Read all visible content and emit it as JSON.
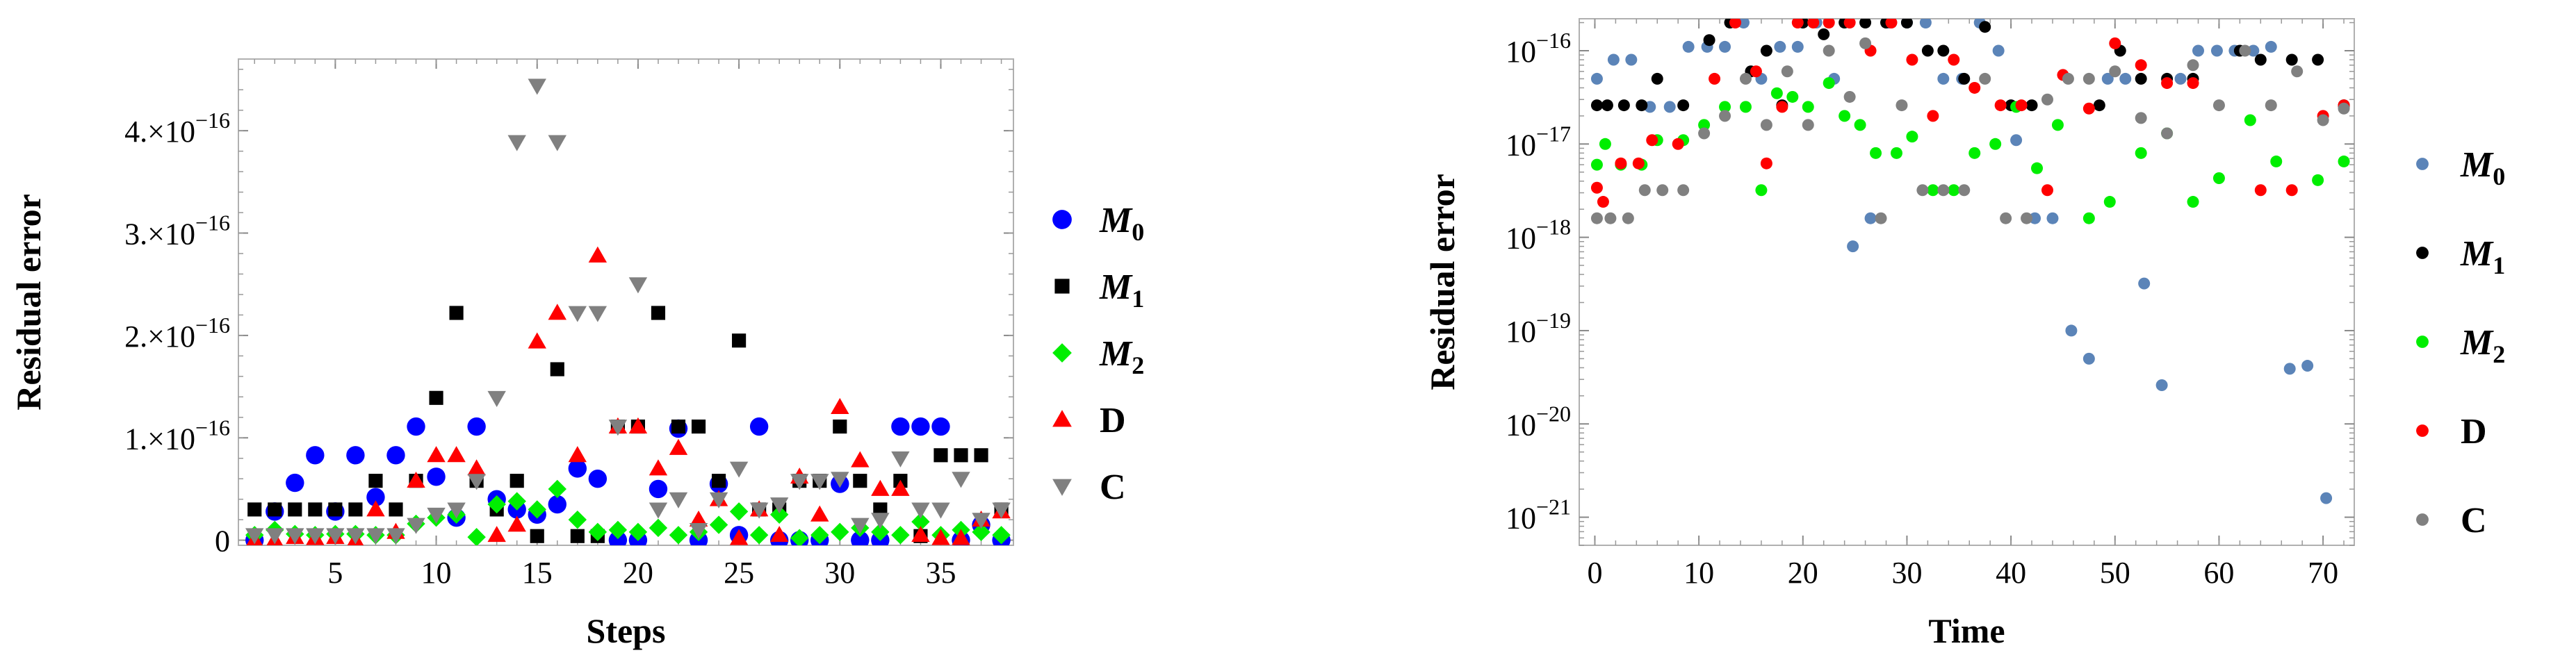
{
  "chart_data": [
    {
      "type": "scatter",
      "xlabel": "Steps",
      "ylabel": "Residual error",
      "yscale": "linear",
      "xlim": [
        0.2,
        38.6
      ],
      "ylim": [
        -5e-18,
        4.7e-16
      ],
      "xticks": [
        5,
        10,
        15,
        20,
        25,
        30,
        35
      ],
      "xtick_labels": [
        "5",
        "10",
        "15",
        "20",
        "25",
        "30",
        "35"
      ],
      "yticks": [
        0,
        1e-16,
        2e-16,
        3e-16,
        4e-16
      ],
      "ytick_mantissa": [
        "0",
        "1.×10",
        "2.×10",
        "3.×10",
        "4.×10"
      ],
      "ytick_exponent": [
        "",
        "−16",
        "−16",
        "−16",
        "−16"
      ],
      "grid": false,
      "legend": "right",
      "series": [
        {
          "name_main": "M",
          "name_sub": "0",
          "marker": "circle",
          "color": "#0000ff",
          "x": [
            1,
            2,
            3,
            4,
            5,
            6,
            7,
            8,
            9,
            10,
            11,
            12,
            13,
            14,
            15,
            16,
            17,
            18,
            19,
            20,
            21,
            22,
            23,
            24,
            25,
            26,
            27,
            28,
            29,
            30,
            31,
            32,
            33,
            34,
            35,
            36,
            37,
            38
          ],
          "y": [
            0,
            2.8e-17,
            5.6e-17,
            8.3e-17,
            2.8e-17,
            8.3e-17,
            4.2e-17,
            8.3e-17,
            1.11e-16,
            6.2e-17,
            2.2e-17,
            1.11e-16,
            4e-17,
            3e-17,
            2.5e-17,
            3.5e-17,
            7e-17,
            6e-17,
            0,
            0,
            5e-17,
            1.09e-16,
            0,
            5.5e-17,
            5e-18,
            1.11e-16,
            0,
            0,
            0,
            5.5e-17,
            0,
            0,
            1.11e-16,
            1.11e-16,
            1.11e-16,
            0,
            1.5e-17,
            0
          ]
        },
        {
          "name_main": "M",
          "name_sub": "1",
          "marker": "square",
          "color": "#000000",
          "x": [
            1,
            2,
            3,
            4,
            5,
            6,
            7,
            8,
            9,
            10,
            11,
            12,
            13,
            14,
            15,
            16,
            17,
            18,
            19,
            20,
            21,
            22,
            23,
            24,
            25,
            26,
            27,
            28,
            29,
            30,
            31,
            32,
            33,
            34,
            35,
            36,
            37,
            38
          ],
          "y": [
            3e-17,
            3e-17,
            3e-17,
            3e-17,
            3e-17,
            3e-17,
            5.8e-17,
            3e-17,
            5.8e-17,
            1.39e-16,
            2.22e-16,
            5.8e-17,
            3e-17,
            5.8e-17,
            4e-18,
            1.67e-16,
            4e-18,
            4e-18,
            1.11e-16,
            1.11e-16,
            2.22e-16,
            1.11e-16,
            1.11e-16,
            5.8e-17,
            1.95e-16,
            3e-17,
            3e-17,
            5.8e-17,
            5.8e-17,
            1.11e-16,
            5.8e-17,
            3e-17,
            5.8e-17,
            4e-18,
            8.3e-17,
            8.3e-17,
            8.3e-17,
            3e-17
          ]
        },
        {
          "name_main": "M",
          "name_sub": "2",
          "marker": "diamond",
          "color": "#00ee00",
          "x": [
            1,
            2,
            3,
            4,
            5,
            6,
            7,
            8,
            9,
            10,
            11,
            12,
            13,
            14,
            15,
            16,
            17,
            18,
            19,
            20,
            21,
            22,
            23,
            24,
            25,
            26,
            27,
            28,
            29,
            30,
            31,
            32,
            33,
            34,
            35,
            36,
            37,
            38
          ],
          "y": [
            5e-18,
            1e-17,
            6e-18,
            5e-18,
            6e-18,
            6e-18,
            5e-18,
            5e-18,
            1.6e-17,
            2.2e-17,
            2.5e-17,
            3e-18,
            3.5e-17,
            3.8e-17,
            3e-17,
            5e-17,
            2e-17,
            8e-18,
            1e-17,
            8e-18,
            1.2e-17,
            5e-18,
            8e-18,
            1.5e-17,
            2.8e-17,
            5e-18,
            2.5e-17,
            2e-18,
            5e-18,
            8e-18,
            1.2e-17,
            8e-18,
            5e-18,
            1.8e-17,
            5e-18,
            1e-17,
            8e-18,
            5e-18
          ]
        },
        {
          "name_main": "D",
          "name_sub": "",
          "marker": "triangle-up",
          "color": "#ff0000",
          "x": [
            1,
            2,
            3,
            4,
            5,
            6,
            7,
            8,
            9,
            10,
            11,
            12,
            13,
            14,
            15,
            16,
            17,
            18,
            19,
            20,
            21,
            22,
            23,
            24,
            25,
            26,
            27,
            28,
            29,
            30,
            31,
            32,
            33,
            34,
            35,
            36,
            37,
            38
          ],
          "y": [
            0,
            0,
            3e-18,
            2e-18,
            3e-18,
            0,
            3e-17,
            8e-18,
            5.8e-17,
            8.3e-17,
            8.3e-17,
            7e-17,
            5e-18,
            1.5e-17,
            1.94e-16,
            2.22e-16,
            8.3e-17,
            2.78e-16,
            1.11e-16,
            1.11e-16,
            7e-17,
            9e-17,
            2e-17,
            4e-17,
            2e-18,
            3e-17,
            5e-18,
            6.2e-17,
            2.5e-17,
            1.3e-16,
            7.8e-17,
            5e-17,
            5e-17,
            5e-18,
            2e-18,
            2e-18,
            2e-17,
            2.8e-17
          ]
        },
        {
          "name_main": "C",
          "name_sub": "",
          "marker": "triangle-down",
          "color": "#808080",
          "x": [
            1,
            2,
            3,
            4,
            5,
            6,
            7,
            8,
            9,
            10,
            11,
            12,
            13,
            14,
            15,
            16,
            17,
            18,
            19,
            20,
            21,
            22,
            23,
            24,
            25,
            26,
            27,
            28,
            29,
            30,
            31,
            32,
            33,
            34,
            35,
            36,
            37,
            38
          ],
          "y": [
            5e-18,
            5e-18,
            5e-18,
            5e-18,
            5e-18,
            5e-18,
            5e-18,
            5e-18,
            1.5e-17,
            2.5e-17,
            3e-17,
            5.8e-17,
            1.39e-16,
            3.89e-16,
            4.44e-16,
            3.89e-16,
            2.22e-16,
            2.22e-16,
            1.11e-16,
            2.5e-16,
            3e-17,
            4e-17,
            1e-17,
            4e-17,
            7e-17,
            3e-17,
            3.5e-17,
            5.8e-17,
            5.8e-17,
            6e-17,
            1.5e-17,
            2e-17,
            8e-17,
            3e-17,
            3e-17,
            6e-17,
            2e-17,
            3e-17
          ]
        }
      ]
    },
    {
      "type": "scatter",
      "xlabel": "Time",
      "ylabel": "Residual error",
      "yscale": "log",
      "xlim": [
        -1.5,
        73
      ],
      "ylim": [
        5e-22,
        2.2e-16
      ],
      "xticks": [
        0,
        10,
        20,
        30,
        40,
        50,
        60,
        70
      ],
      "xtick_labels": [
        "0",
        "10",
        "20",
        "30",
        "40",
        "50",
        "60",
        "70"
      ],
      "yticks": [
        1e-21,
        1e-20,
        1e-19,
        1e-18,
        1e-17,
        1e-16
      ],
      "ytick_mantissa": [
        "10",
        "10",
        "10",
        "10",
        "10",
        "10"
      ],
      "ytick_exponent": [
        "−21",
        "−20",
        "−19",
        "−18",
        "−17",
        "−16"
      ],
      "grid": false,
      "legend": "right",
      "series": [
        {
          "name_main": "M",
          "name_sub": "0",
          "marker": "dot",
          "color": "#5b84b8",
          "x": [
            0.2,
            1.8,
            3.5,
            5.3,
            7.2,
            9.0,
            10.8,
            12.5,
            14.3,
            16.0,
            17.8,
            19.5,
            21.3,
            23.0,
            24.8,
            26.5,
            28.3,
            30.0,
            31.8,
            33.5,
            35.3,
            37.0,
            38.8,
            40.5,
            42.3,
            44.0,
            45.8,
            47.5,
            49.3,
            51.0,
            52.8,
            54.5,
            56.3,
            58.0,
            59.8,
            61.5,
            63.3,
            65.0,
            66.8,
            68.5,
            70.3,
            72.0
          ],
          "y": [
            5e-17,
            8e-17,
            8e-17,
            2.5e-17,
            2.5e-17,
            1.1e-16,
            1.1e-16,
            1.1e-16,
            2e-16,
            5e-17,
            1.1e-16,
            1.1e-16,
            2e-16,
            5e-17,
            8e-19,
            1.6e-18,
            2e-16,
            2e-16,
            2e-16,
            5e-17,
            5e-17,
            2e-16,
            1e-16,
            1.1e-17,
            1.6e-18,
            1.6e-18,
            1e-19,
            5e-20,
            5e-17,
            5e-17,
            3.2e-19,
            2.6e-20,
            5e-17,
            1e-16,
            1e-16,
            1e-16,
            1e-16,
            1.1e-16,
            3.9e-20,
            4.2e-20,
            1.6e-21,
            2.5e-17
          ],
          "x_alt": [
            0.5,
            2.5,
            4.2,
            6.0,
            8.0,
            9.8,
            11.5,
            13.3,
            15.0,
            16.8,
            18.5,
            20.3,
            22.0,
            23.8,
            25.5,
            27.3,
            29.0,
            30.8,
            32.5,
            34.3,
            36.0,
            37.8,
            39.5,
            41.3,
            43.0,
            44.8,
            46.5,
            48.3,
            50.0,
            51.8,
            53.5,
            55.3,
            57.0,
            58.8,
            60.5,
            62.3,
            64.0,
            65.8,
            67.5,
            69.3,
            71.0,
            72.3
          ],
          "y_alt": [
            5e-17,
            8e-17,
            8e-17,
            4e-17,
            8e-17,
            1e-16,
            6e-17,
            2e-17,
            5e-17,
            1e-16,
            3e-17,
            3e-17,
            1e-16,
            6e-17,
            8e-19,
            1.6e-18,
            5e-17,
            5e-17,
            5e-17,
            5e-17,
            4e-17,
            1e-16,
            1e-16,
            1.6e-18,
            1.6e-18,
            1.6e-18,
            1e-19,
            5e-20,
            5e-17,
            5e-17,
            3.2e-19,
            2.6e-20,
            1e-16,
            1e-16,
            1e-16,
            1e-16,
            1e-16,
            8e-17,
            3.9e-20,
            4.2e-20,
            1.6e-21,
            2.5e-17
          ]
        },
        {
          "name_main": "M",
          "name_sub": "1",
          "marker": "dot",
          "color": "#000000",
          "x": [
            0.2,
            1.2,
            2.8,
            4.5,
            6.0,
            8.5,
            11.0,
            13.0,
            15.0,
            16.5,
            18.0,
            20.0,
            22.0,
            24.0,
            26.0,
            28.0,
            30.0,
            32.0,
            33.5,
            35.5,
            37.5,
            40.0,
            42.0,
            48.5,
            50.5,
            52.5,
            55.0,
            57.5,
            62.0,
            64.0,
            67.0,
            69.5,
            72.0
          ],
          "y": [
            2.6e-17,
            2.6e-17,
            2.6e-17,
            2.6e-17,
            5e-17,
            2.6e-17,
            1.3e-16,
            2e-16,
            6e-17,
            1e-16,
            2.6e-17,
            2e-16,
            1.5e-16,
            2e-16,
            2e-16,
            2e-16,
            2e-16,
            1e-16,
            1e-16,
            5e-17,
            1.8e-16,
            2.6e-17,
            2.6e-17,
            2.6e-17,
            1e-16,
            5e-17,
            5e-17,
            5e-17,
            1e-16,
            8e-17,
            8e-17,
            8e-17,
            2.6e-17
          ]
        },
        {
          "name_main": "M",
          "name_sub": "2",
          "marker": "dot",
          "color": "#00ee00",
          "x": [
            0.2,
            1.0,
            2.5,
            4.5,
            6.0,
            8.5,
            10.5,
            12.5,
            14.5,
            16.0,
            17.5,
            19.0,
            20.5,
            22.5,
            24.0,
            25.5,
            27.0,
            29.0,
            30.5,
            32.5,
            34.5,
            36.5,
            38.5,
            40.5,
            42.5,
            44.5,
            47.5,
            49.5,
            52.5,
            55.0,
            57.5,
            60.0,
            63.0,
            65.5,
            69.5,
            72.0
          ],
          "y": [
            6e-18,
            1e-17,
            6e-18,
            6e-18,
            1.1e-17,
            1.1e-17,
            1.6e-17,
            2.5e-17,
            2.5e-17,
            3.2e-18,
            3.5e-17,
            3.2e-17,
            2.5e-17,
            4.5e-17,
            2e-17,
            1.6e-17,
            8e-18,
            8e-18,
            1.2e-17,
            3.2e-18,
            3.2e-18,
            8e-18,
            1e-17,
            2.5e-17,
            5.5e-18,
            1.6e-17,
            1.6e-18,
            2.4e-18,
            8e-18,
            1.3e-17,
            2.4e-18,
            4.3e-18,
            1.8e-17,
            6.5e-18,
            4.1e-18,
            6.5e-18
          ]
        },
        {
          "name_main": "D",
          "name_sub": "",
          "marker": "dot",
          "color": "#ff0000",
          "x": [
            0.2,
            0.8,
            2.5,
            4.2,
            5.5,
            8.0,
            11.5,
            13.5,
            15.5,
            16.5,
            18.0,
            19.5,
            21.0,
            22.5,
            24.5,
            26.5,
            28.5,
            30.5,
            32.5,
            34.5,
            36.5,
            39.0,
            41.0,
            43.5,
            45.0,
            47.5,
            50.0,
            52.5,
            55.0,
            57.5,
            64.0,
            67.0,
            70.0,
            72.0
          ],
          "y": [
            3.4e-18,
            2.4e-18,
            6.2e-18,
            6.2e-18,
            1.1e-17,
            1e-17,
            5e-17,
            2e-16,
            6e-17,
            6.2e-18,
            2.5e-17,
            2e-16,
            2e-16,
            2e-16,
            2e-16,
            1e-16,
            2e-16,
            8e-17,
            2e-17,
            8e-17,
            4e-17,
            2.6e-17,
            2.6e-17,
            3.2e-18,
            5.5e-17,
            2.4e-17,
            1.2e-16,
            7e-17,
            4.5e-17,
            4.5e-17,
            3.2e-18,
            3.2e-18,
            2e-17,
            2.6e-17
          ]
        },
        {
          "name_main": "C",
          "name_sub": "",
          "marker": "dot",
          "color": "#808080",
          "x": [
            0.2,
            1.5,
            3.2,
            4.8,
            6.5,
            8.5,
            10.5,
            12.5,
            14.5,
            16.5,
            18.5,
            20.5,
            22.5,
            24.5,
            26.0,
            27.5,
            29.5,
            31.5,
            33.5,
            35.5,
            37.5,
            39.5,
            41.5,
            43.5,
            45.5,
            47.5,
            50.0,
            52.5,
            55.0,
            57.5,
            60.0,
            62.5,
            65.0,
            67.5,
            70.0,
            72.0
          ],
          "y": [
            1.6e-18,
            1.6e-18,
            1.6e-18,
            3.2e-18,
            3.2e-18,
            3.2e-18,
            1.3e-17,
            2e-17,
            5e-17,
            1.6e-17,
            6e-17,
            1.6e-17,
            1e-16,
            3.2e-17,
            1.2e-16,
            1.6e-18,
            2.6e-17,
            3.2e-18,
            3.2e-18,
            3.2e-18,
            5e-17,
            1.6e-18,
            1.6e-18,
            3e-17,
            5e-17,
            5e-17,
            6e-17,
            1.9e-17,
            1.3e-17,
            7e-17,
            2.6e-17,
            1e-16,
            2.6e-17,
            6e-17,
            1.8e-17,
            2.4e-17
          ]
        }
      ]
    }
  ]
}
